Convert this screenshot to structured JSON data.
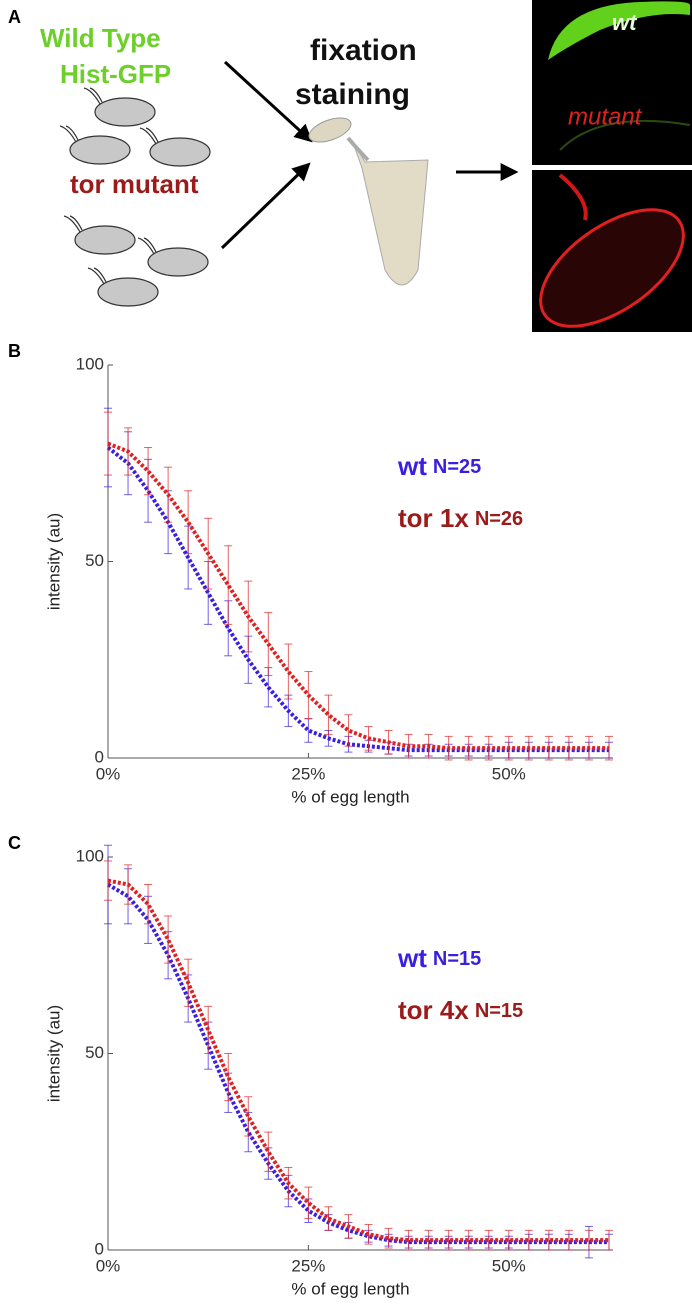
{
  "panel_a": {
    "label": "A",
    "group1": [
      "Wild Type",
      "Hist-GFP"
    ],
    "group2": "tor mutant",
    "step": [
      "fixation",
      "staining"
    ],
    "image_labels": [
      "wt",
      "mutant"
    ]
  },
  "chart_data": [
    {
      "type": "line",
      "label": "B",
      "xlabel": "% of egg length",
      "ylabel": "intensity (au)",
      "x": [
        0,
        2.5,
        5,
        7.5,
        10,
        12.5,
        15,
        17.5,
        20,
        22.5,
        25,
        27.5,
        30,
        32.5,
        35,
        37.5,
        40,
        42.5,
        45,
        47.5,
        50,
        52.5,
        55,
        57.5,
        60,
        62.5
      ],
      "xlim": [
        0,
        63
      ],
      "xticks": [
        {
          "value": 0,
          "label": "0%"
        },
        {
          "value": 25,
          "label": "25%"
        },
        {
          "value": 50,
          "label": "50%"
        }
      ],
      "ylim": [
        0,
        100
      ],
      "yticks": [
        0,
        50,
        100
      ],
      "legend": "center-right",
      "series": [
        {
          "name": "wt",
          "n": "N=25",
          "color": "#3a1fe0",
          "legend_color": "#3a1fe0",
          "values": [
            79,
            75,
            68,
            60,
            51,
            42,
            33,
            25,
            18,
            12,
            7,
            5,
            3.5,
            3,
            2.5,
            2,
            2,
            2,
            2,
            2,
            2,
            2,
            2,
            2,
            2,
            2
          ],
          "errors": [
            10,
            8,
            8,
            8,
            8,
            8,
            7,
            6,
            5,
            4,
            3,
            2,
            2,
            1.5,
            1.5,
            1.5,
            1.5,
            1.5,
            1.5,
            1.5,
            2,
            2,
            2,
            2,
            2,
            2
          ]
        },
        {
          "name": "tor 1x",
          "n": "N=26",
          "color": "#dd2222",
          "legend_color": "#9b1b1b",
          "values": [
            80,
            78,
            73,
            67,
            60,
            52,
            44,
            36,
            29,
            22,
            16,
            11,
            7,
            5,
            4,
            3,
            3,
            2.5,
            2.5,
            2.5,
            2.5,
            2.5,
            2.5,
            2.5,
            2.5,
            2.5
          ],
          "errors": [
            8,
            6,
            6,
            7,
            8,
            9,
            10,
            9,
            8,
            7,
            6,
            5,
            4,
            3,
            3,
            3,
            3,
            3,
            3,
            3,
            3,
            3,
            3,
            3,
            3,
            3
          ]
        }
      ]
    },
    {
      "type": "line",
      "label": "C",
      "xlabel": "% of egg length",
      "ylabel": "intensity (au)",
      "x": [
        0,
        2.5,
        5,
        7.5,
        10,
        12.5,
        15,
        17.5,
        20,
        22.5,
        25,
        27.5,
        30,
        32.5,
        35,
        37.5,
        40,
        42.5,
        45,
        47.5,
        50,
        52.5,
        55,
        57.5,
        60,
        62.5
      ],
      "xlim": [
        0,
        63
      ],
      "xticks": [
        {
          "value": 0,
          "label": "0%"
        },
        {
          "value": 25,
          "label": "25%"
        },
        {
          "value": 50,
          "label": "50%"
        }
      ],
      "ylim": [
        0,
        100
      ],
      "yticks": [
        0,
        50,
        100
      ],
      "legend": "center-right",
      "series": [
        {
          "name": "wt",
          "n": "N=15",
          "color": "#3a1fe0",
          "legend_color": "#3a1fe0",
          "values": [
            93,
            90,
            84,
            75,
            64,
            52,
            40,
            30,
            22,
            15,
            10,
            7,
            5,
            3.5,
            2.5,
            2,
            2,
            2,
            2,
            2,
            2,
            2,
            2,
            2,
            2,
            2
          ],
          "errors": [
            10,
            7,
            6,
            6,
            6,
            6,
            5,
            5,
            4,
            4,
            3,
            2,
            2,
            1.5,
            1.5,
            1.5,
            1.5,
            1.5,
            1.5,
            1.5,
            1.5,
            2,
            2,
            2,
            4,
            2
          ]
        },
        {
          "name": "tor 4x",
          "n": "N=15",
          "color": "#dd2222",
          "legend_color": "#9b1b1b",
          "values": [
            94,
            93,
            88,
            79,
            68,
            56,
            44,
            34,
            25,
            17,
            12,
            8,
            6,
            4,
            3,
            2.5,
            2.5,
            2.5,
            2.5,
            2.5,
            2.5,
            2.5,
            2.5,
            2.5,
            2.5,
            2.5
          ],
          "errors": [
            5,
            5,
            5,
            6,
            6,
            6,
            6,
            5,
            5,
            4,
            4,
            3,
            3,
            2.5,
            2.5,
            2.5,
            2.5,
            2.5,
            2.5,
            2.5,
            2.5,
            2.5,
            2.5,
            2.5,
            2.5,
            2.5
          ]
        }
      ]
    }
  ]
}
